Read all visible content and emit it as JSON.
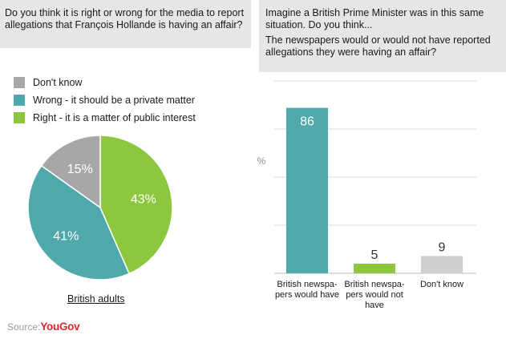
{
  "left_question": "Do you think it is right or wrong for the media to report allegations that François Hollande is having an affair?",
  "right_question": [
    "Imagine a British Prime Minister was in this same situation. Do you think...",
    "The newspapers would or would not have reported allegations they were having an affair?"
  ],
  "source_label": "Source:",
  "source_brand": "YouGov",
  "colors": {
    "green": "#8dc63f",
    "teal": "#4fa9ab",
    "grey": "#a7a7a9",
    "light_grey": "#cfcfcf",
    "question_bg": "#e6e6e6",
    "brand": "#e2272b"
  },
  "chart_data": [
    {
      "type": "pie",
      "caption": "British adults",
      "labels": [
        "Don't know",
        "Wrong - it should be a private matter",
        "Right - it is a matter of public interest"
      ],
      "values": [
        15,
        41,
        43
      ],
      "value_labels": [
        "15%",
        "41%",
        "43%"
      ],
      "legend_position": "top-left"
    },
    {
      "type": "bar",
      "categories": [
        [
          "British newspa-",
          "pers would have"
        ],
        [
          "British newspa-",
          "pers would not",
          "have"
        ],
        [
          "Don't know"
        ]
      ],
      "values": [
        86,
        5,
        9
      ],
      "value_labels": [
        "86",
        "5",
        "9"
      ],
      "ylabel": "%",
      "ylim": [
        0,
        100
      ],
      "grid": true
    }
  ]
}
